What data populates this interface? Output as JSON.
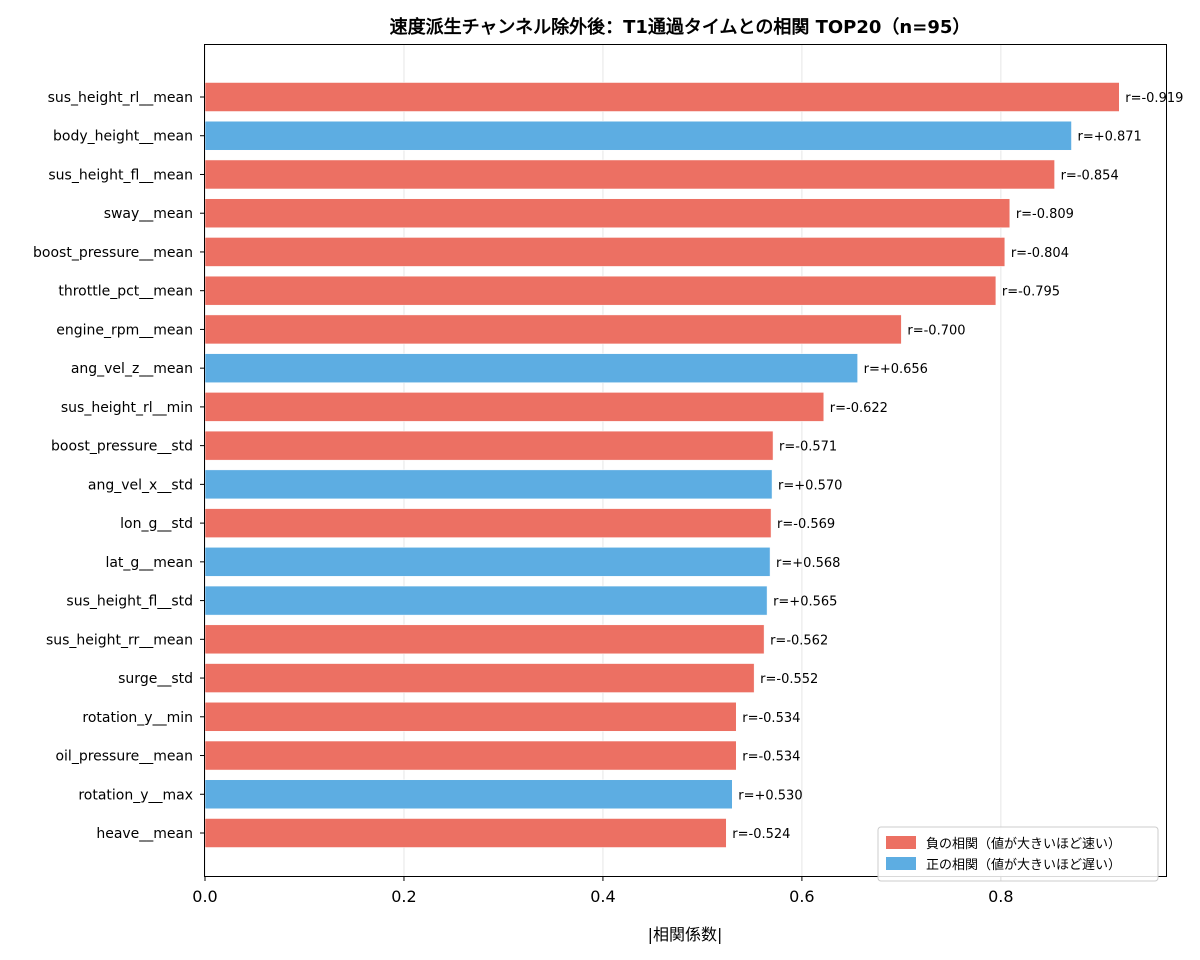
{
  "chart_data": {
    "type": "bar",
    "orientation": "horizontal",
    "title": "速度派生チャンネル除外後：T1通過タイムとの相関 TOP20（n=95）",
    "xlabel": "|相関係数|",
    "ylabel": "",
    "xlim": [
      0,
      0.966
    ],
    "xticks": [
      0.0,
      0.2,
      0.4,
      0.6,
      0.8
    ],
    "xtick_labels": [
      "0.0",
      "0.2",
      "0.4",
      "0.6",
      "0.8"
    ],
    "grid": "vertical",
    "legend_position": "bottom-right",
    "colors": {
      "negative": "#ec7063",
      "positive": "#5dade2"
    },
    "legend": [
      {
        "key": "negative",
        "label": "負の相関（値が大きいほど速い）"
      },
      {
        "key": "positive",
        "label": "正の相関（値が大きいほど遅い）"
      }
    ],
    "bars": [
      {
        "category": "sus_height_rl__mean",
        "value": 0.919,
        "r": "r=-0.919",
        "sign": "negative"
      },
      {
        "category": "body_height__mean",
        "value": 0.871,
        "r": "r=+0.871",
        "sign": "positive"
      },
      {
        "category": "sus_height_fl__mean",
        "value": 0.854,
        "r": "r=-0.854",
        "sign": "negative"
      },
      {
        "category": "sway__mean",
        "value": 0.809,
        "r": "r=-0.809",
        "sign": "negative"
      },
      {
        "category": "boost_pressure__mean",
        "value": 0.804,
        "r": "r=-0.804",
        "sign": "negative"
      },
      {
        "category": "throttle_pct__mean",
        "value": 0.795,
        "r": "r=-0.795",
        "sign": "negative"
      },
      {
        "category": "engine_rpm__mean",
        "value": 0.7,
        "r": "r=-0.700",
        "sign": "negative"
      },
      {
        "category": "ang_vel_z__mean",
        "value": 0.656,
        "r": "r=+0.656",
        "sign": "positive"
      },
      {
        "category": "sus_height_rl__min",
        "value": 0.622,
        "r": "r=-0.622",
        "sign": "negative"
      },
      {
        "category": "boost_pressure__std",
        "value": 0.571,
        "r": "r=-0.571",
        "sign": "negative"
      },
      {
        "category": "ang_vel_x__std",
        "value": 0.57,
        "r": "r=+0.570",
        "sign": "positive"
      },
      {
        "category": "lon_g__std",
        "value": 0.569,
        "r": "r=-0.569",
        "sign": "negative"
      },
      {
        "category": "lat_g__mean",
        "value": 0.568,
        "r": "r=+0.568",
        "sign": "positive"
      },
      {
        "category": "sus_height_fl__std",
        "value": 0.565,
        "r": "r=+0.565",
        "sign": "positive"
      },
      {
        "category": "sus_height_rr__mean",
        "value": 0.562,
        "r": "r=-0.562",
        "sign": "negative"
      },
      {
        "category": "surge__std",
        "value": 0.552,
        "r": "r=-0.552",
        "sign": "negative"
      },
      {
        "category": "rotation_y__min",
        "value": 0.534,
        "r": "r=-0.534",
        "sign": "negative"
      },
      {
        "category": "oil_pressure__mean",
        "value": 0.534,
        "r": "r=-0.534",
        "sign": "negative"
      },
      {
        "category": "rotation_y__max",
        "value": 0.53,
        "r": "r=+0.530",
        "sign": "positive"
      },
      {
        "category": "heave__mean",
        "value": 0.524,
        "r": "r=-0.524",
        "sign": "negative"
      }
    ]
  }
}
